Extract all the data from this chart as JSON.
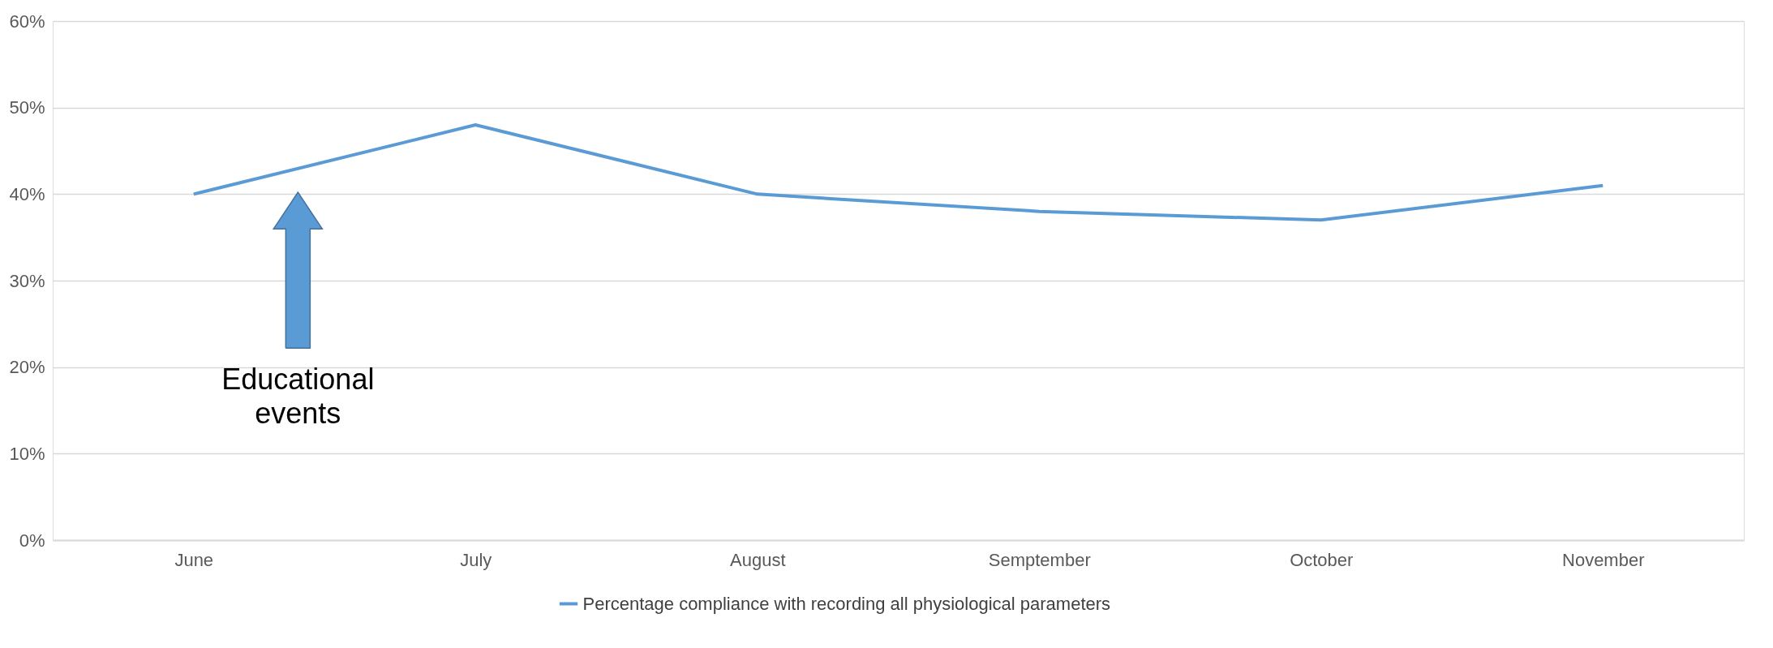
{
  "chart_data": {
    "type": "line",
    "categories": [
      "June",
      "July",
      "August",
      "Semptember",
      "October",
      "November"
    ],
    "series": [
      {
        "name": "Percentage compliance with recording all physiological parameters",
        "color": "#5b9bd5",
        "values": [
          40,
          48,
          40,
          38,
          37,
          41
        ]
      }
    ],
    "ylim": [
      0,
      60
    ],
    "yticks": [
      {
        "value": 0,
        "label": "0%"
      },
      {
        "value": 10,
        "label": "10%"
      },
      {
        "value": 20,
        "label": "20%"
      },
      {
        "value": 30,
        "label": "30%"
      },
      {
        "value": 40,
        "label": "40%"
      },
      {
        "value": 50,
        "label": "50%"
      },
      {
        "value": 60,
        "label": "60%"
      }
    ],
    "grid": "y",
    "legend": "bottom",
    "marker": "none",
    "line_style": "solid",
    "annotations": [
      "Educational events"
    ]
  }
}
